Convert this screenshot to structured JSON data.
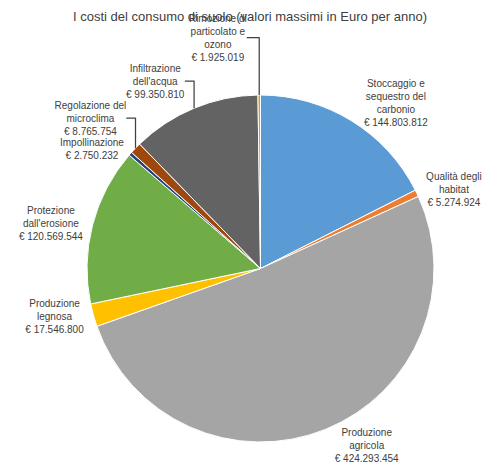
{
  "chart_data": {
    "type": "pie",
    "title": "I costi del consumo di suolo (valori massimi in Euro per anno)",
    "categories": [
      "Stoccaggio e sequestro del carbonio",
      "Qualità degli habitat",
      "Produzione agricola",
      "Produzione legnosa",
      "Protezione dall'erosione",
      "Impollinazione",
      "Regolazione del microclima",
      "Infiltrazione dell'acqua",
      "Rimozione di particolato e ozono"
    ],
    "values": [
      144803812,
      5274924,
      424293454,
      17546800,
      120569544,
      2750232,
      8765754,
      99350810,
      1925019
    ],
    "value_labels": [
      "€ 144.803.812",
      "€ 5.274.924",
      "€ 424.293.454",
      "€ 17.546.800",
      "€ 120.569.544",
      "€ 2.750.232",
      "€ 8.765.754",
      "€ 99.350.810",
      "€ 1.925.019"
    ],
    "colors": [
      "#5B9BD5",
      "#ED7D31",
      "#A5A5A5",
      "#FFC000",
      "#70AD47",
      "#264478",
      "#9E480E",
      "#636363",
      "#C9A227"
    ],
    "data_labels": true
  }
}
